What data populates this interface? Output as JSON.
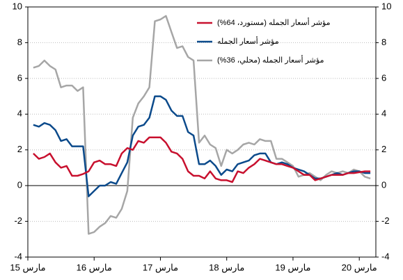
{
  "chart_data": {
    "type": "line",
    "x": [
      1,
      2,
      3,
      4,
      5,
      6,
      7,
      8,
      9,
      10,
      11,
      12,
      13,
      14,
      15,
      16,
      17,
      18,
      19,
      20,
      21,
      22,
      23,
      24,
      25,
      26,
      27,
      28,
      29,
      30,
      31,
      32,
      33,
      34,
      35,
      36,
      37,
      38,
      39,
      40,
      41,
      42,
      43,
      44,
      45,
      46,
      47,
      48,
      49,
      50,
      51,
      52,
      53,
      54,
      55,
      56,
      57,
      58,
      59,
      60,
      61,
      62
    ],
    "xlim": [
      0,
      63
    ],
    "xticks": [
      {
        "value": 0,
        "label": "مارس 15"
      },
      {
        "value": 12,
        "label": "مارس 16"
      },
      {
        "value": 24,
        "label": "مارس 17"
      },
      {
        "value": 36,
        "label": "مارس 18"
      },
      {
        "value": 48,
        "label": "مارس 19"
      },
      {
        "value": 60,
        "label": "مارس 20"
      }
    ],
    "ylim": [
      -4,
      10
    ],
    "yticks": [
      -4,
      -2,
      0,
      2,
      4,
      6,
      8,
      10
    ],
    "y2lim": [
      -4,
      10
    ],
    "y2ticks": [
      -4,
      -2,
      0,
      2,
      4,
      6,
      8,
      10
    ],
    "grid": true,
    "series": [
      {
        "name": "مؤشر أسعار الجمله (مستورد، 64%)",
        "color": "#c8102e",
        "values": [
          1.8,
          1.5,
          1.6,
          1.8,
          1.3,
          1.0,
          1.1,
          0.55,
          0.55,
          0.65,
          0.8,
          1.3,
          1.4,
          1.2,
          1.2,
          1.1,
          1.8,
          2.1,
          2.0,
          2.5,
          2.4,
          2.7,
          2.7,
          2.7,
          2.4,
          1.9,
          1.8,
          1.5,
          0.8,
          0.55,
          0.55,
          0.4,
          0.8,
          0.4,
          0.3,
          0.3,
          0.2,
          0.8,
          0.7,
          1.0,
          1.2,
          1.5,
          1.4,
          1.3,
          1.2,
          1.2,
          1.1,
          1.0,
          0.8,
          0.6,
          0.6,
          0.3,
          0.4,
          0.5,
          0.6,
          0.6,
          0.6,
          0.7,
          0.7,
          0.75,
          0.8,
          0.8
        ]
      },
      {
        "name": "مؤشر أسعار الجمله",
        "color": "#0b4a8b",
        "values": [
          3.4,
          3.3,
          3.5,
          3.4,
          3.1,
          2.5,
          2.6,
          2.2,
          2.2,
          2.2,
          -0.6,
          -0.3,
          0.0,
          0.0,
          0.2,
          0.1,
          0.7,
          1.3,
          2.8,
          3.3,
          3.4,
          3.8,
          5.0,
          5.0,
          4.8,
          4.2,
          3.9,
          3.9,
          3.0,
          2.8,
          1.2,
          1.2,
          1.4,
          1.1,
          0.6,
          0.9,
          0.8,
          1.2,
          1.3,
          1.4,
          1.7,
          1.8,
          1.8,
          1.3,
          1.2,
          1.3,
          1.2,
          1.0,
          0.9,
          0.8,
          0.6,
          0.4,
          0.4,
          0.5,
          0.6,
          0.7,
          0.6,
          0.7,
          0.8,
          0.8,
          0.7,
          0.7
        ]
      },
      {
        "name": "مؤشر أسعار الجمله (محلي، 36%)",
        "color": "#a6a6a6",
        "values": [
          6.6,
          6.7,
          7.0,
          6.7,
          6.5,
          5.5,
          5.6,
          5.6,
          5.3,
          5.5,
          -2.7,
          -2.6,
          -2.3,
          -2.1,
          -1.7,
          -1.8,
          -1.3,
          -0.3,
          3.8,
          4.6,
          5.0,
          5.5,
          9.2,
          9.3,
          9.5,
          8.6,
          7.7,
          7.8,
          7.2,
          7.0,
          2.4,
          2.8,
          2.3,
          2.1,
          1.1,
          2.0,
          1.8,
          2.0,
          2.3,
          2.4,
          2.3,
          2.6,
          2.5,
          2.5,
          1.5,
          1.5,
          1.3,
          1.1,
          0.5,
          0.6,
          0.7,
          0.5,
          0.3,
          0.6,
          0.8,
          0.7,
          0.8,
          0.7,
          0.9,
          0.8,
          0.5,
          0.4
        ]
      }
    ]
  }
}
